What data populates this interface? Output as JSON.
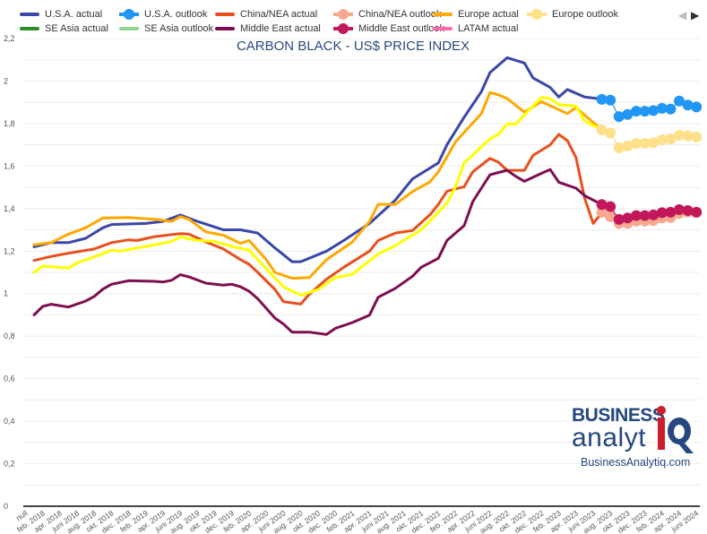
{
  "chart_data": {
    "type": "line",
    "title": "CARBON BLACK - US$ PRICE INDEX",
    "xlabel": "",
    "ylabel": "",
    "ylim": [
      0,
      2.2
    ],
    "yticks": [
      "0",
      "0,2",
      "0,4",
      "0,6",
      "0,8",
      "1",
      "1,2",
      "1,4",
      "1,6",
      "1,8",
      "2",
      "2,2"
    ],
    "xstart": "2017-12",
    "xend": "2024-06",
    "xtick_labels": [
      "null",
      "feb. 2018",
      "apr. 2018",
      "juni 2018",
      "aug. 2018",
      "okt. 2018",
      "dec. 2018",
      "feb. 2019",
      "apr. 2019",
      "juni 2019",
      "aug. 2019",
      "okt. 2019",
      "dec. 2019",
      "feb. 2020",
      "apr. 2020",
      "juni 2020",
      "aug. 2020",
      "okt. 2020",
      "dec. 2020",
      "feb. 2021",
      "apr. 2021",
      "juni 2021",
      "aug. 2021",
      "okt. 2021",
      "dec. 2021",
      "feb. 2022",
      "apr. 2022",
      "juni 2022",
      "aug. 2022",
      "okt. 2022",
      "dec. 2022",
      "feb. 2023",
      "apr. 2023",
      "juni 2023",
      "aug. 2023",
      "okt. 2023",
      "dec. 2023",
      "feb. 2024",
      "apr. 2024",
      "juni 2024"
    ],
    "grid": true,
    "legend_placement": "top",
    "series": [
      {
        "name": "U.S.A. actual",
        "color": "#3a47a8",
        "style": "line",
        "points": [
          [
            "2018-01",
            1.22
          ],
          [
            "2018-03",
            1.24
          ],
          [
            "2018-05",
            1.24
          ],
          [
            "2018-07",
            1.26
          ],
          [
            "2018-09",
            1.31
          ],
          [
            "2018-10",
            1.325
          ],
          [
            "2019-02",
            1.33
          ],
          [
            "2019-04",
            1.34
          ],
          [
            "2019-06",
            1.37
          ],
          [
            "2019-08",
            1.34
          ],
          [
            "2019-11",
            1.3
          ],
          [
            "2020-01",
            1.3
          ],
          [
            "2020-03",
            1.285
          ],
          [
            "2020-05",
            1.215
          ],
          [
            "2020-07",
            1.15
          ],
          [
            "2020-08",
            1.15
          ],
          [
            "2020-11",
            1.2
          ],
          [
            "2021-01",
            1.25
          ],
          [
            "2021-04",
            1.33
          ],
          [
            "2021-07",
            1.44
          ],
          [
            "2021-09",
            1.54
          ],
          [
            "2021-12",
            1.615
          ],
          [
            "2022-01",
            1.7
          ],
          [
            "2022-03",
            1.83
          ],
          [
            "2022-05",
            1.95
          ],
          [
            "2022-06",
            2.04
          ],
          [
            "2022-08",
            2.11
          ],
          [
            "2022-10",
            2.085
          ],
          [
            "2022-11",
            2.015
          ],
          [
            "2023-01",
            1.97
          ],
          [
            "2023-02",
            1.925
          ],
          [
            "2023-03",
            1.96
          ],
          [
            "2023-05",
            1.925
          ],
          [
            "2023-07",
            1.915
          ]
        ]
      },
      {
        "name": "U.S.A. outlook",
        "color": "#2196f3",
        "style": "markers",
        "points": [
          [
            "2023-07",
            1.914
          ],
          [
            "2023-08",
            1.91
          ],
          [
            "2023-09",
            1.833
          ],
          [
            "2023-10",
            1.843
          ],
          [
            "2023-11",
            1.858
          ],
          [
            "2023-12",
            1.858
          ],
          [
            "2024-01",
            1.861
          ],
          [
            "2024-02",
            1.872
          ],
          [
            "2024-03",
            1.868
          ],
          [
            "2024-04",
            1.906
          ],
          [
            "2024-05",
            1.887
          ],
          [
            "2024-06",
            1.878
          ]
        ]
      },
      {
        "name": "China/NEA actual",
        "color": "#e8501c",
        "style": "line",
        "points": [
          [
            "2018-01",
            1.156
          ],
          [
            "2018-03",
            1.175
          ],
          [
            "2018-05",
            1.19
          ],
          [
            "2018-08",
            1.21
          ],
          [
            "2018-10",
            1.24
          ],
          [
            "2018-12",
            1.253
          ],
          [
            "2019-01",
            1.25
          ],
          [
            "2019-03",
            1.268
          ],
          [
            "2019-06",
            1.282
          ],
          [
            "2019-07",
            1.28
          ],
          [
            "2019-09",
            1.243
          ],
          [
            "2019-11",
            1.21
          ],
          [
            "2020-01",
            1.16
          ],
          [
            "2020-02",
            1.138
          ],
          [
            "2020-03",
            1.1
          ],
          [
            "2020-05",
            1.02
          ],
          [
            "2020-06",
            0.962
          ],
          [
            "2020-08",
            0.951
          ],
          [
            "2020-09",
            0.997
          ],
          [
            "2020-11",
            1.068
          ],
          [
            "2021-01",
            1.124
          ],
          [
            "2021-04",
            1.2
          ],
          [
            "2021-05",
            1.25
          ],
          [
            "2021-07",
            1.285
          ],
          [
            "2021-09",
            1.297
          ],
          [
            "2021-11",
            1.37
          ],
          [
            "2021-12",
            1.42
          ],
          [
            "2022-01",
            1.482
          ],
          [
            "2022-03",
            1.503
          ],
          [
            "2022-04",
            1.573
          ],
          [
            "2022-06",
            1.636
          ],
          [
            "2022-07",
            1.618
          ],
          [
            "2022-08",
            1.58
          ],
          [
            "2022-10",
            1.58
          ],
          [
            "2022-11",
            1.65
          ],
          [
            "2023-01",
            1.7
          ],
          [
            "2023-02",
            1.749
          ],
          [
            "2023-03",
            1.72
          ],
          [
            "2023-04",
            1.64
          ],
          [
            "2023-05",
            1.45
          ],
          [
            "2023-06",
            1.33
          ],
          [
            "2023-07",
            1.38
          ]
        ]
      },
      {
        "name": "China/NEA outlook",
        "color": "#f7a98f",
        "style": "markers",
        "points": [
          [
            "2023-07",
            1.383
          ],
          [
            "2023-08",
            1.362
          ],
          [
            "2023-09",
            1.33
          ],
          [
            "2023-10",
            1.33
          ],
          [
            "2023-11",
            1.341
          ],
          [
            "2023-12",
            1.341
          ],
          [
            "2024-01",
            1.344
          ],
          [
            "2024-02",
            1.356
          ],
          [
            "2024-03",
            1.358
          ],
          [
            "2024-04",
            1.377
          ],
          [
            "2024-05",
            1.383
          ],
          [
            "2024-06",
            1.383
          ]
        ]
      },
      {
        "name": "Europe actual",
        "color": "#ffa800",
        "style": "line",
        "points": [
          [
            "2018-01",
            1.23
          ],
          [
            "2018-03",
            1.24
          ],
          [
            "2018-05",
            1.28
          ],
          [
            "2018-07",
            1.31
          ],
          [
            "2018-09",
            1.356
          ],
          [
            "2018-12",
            1.358
          ],
          [
            "2019-03",
            1.35
          ],
          [
            "2019-05",
            1.34
          ],
          [
            "2019-06",
            1.362
          ],
          [
            "2019-07",
            1.35
          ],
          [
            "2019-09",
            1.29
          ],
          [
            "2019-11",
            1.275
          ],
          [
            "2020-01",
            1.237
          ],
          [
            "2020-02",
            1.25
          ],
          [
            "2020-04",
            1.16
          ],
          [
            "2020-05",
            1.1
          ],
          [
            "2020-07",
            1.072
          ],
          [
            "2020-09",
            1.075
          ],
          [
            "2020-11",
            1.16
          ],
          [
            "2021-02",
            1.243
          ],
          [
            "2021-04",
            1.34
          ],
          [
            "2021-05",
            1.42
          ],
          [
            "2021-07",
            1.42
          ],
          [
            "2021-09",
            1.48
          ],
          [
            "2021-11",
            1.525
          ],
          [
            "2021-12",
            1.573
          ],
          [
            "2022-02",
            1.714
          ],
          [
            "2022-05",
            1.847
          ],
          [
            "2022-06",
            1.946
          ],
          [
            "2022-07",
            1.935
          ],
          [
            "2022-08",
            1.917
          ],
          [
            "2022-10",
            1.854
          ],
          [
            "2022-12",
            1.903
          ],
          [
            "2023-03",
            1.847
          ],
          [
            "2023-04",
            1.875
          ],
          [
            "2023-07",
            1.77
          ]
        ]
      },
      {
        "name": "Europe outlook",
        "color": "#ffe08a",
        "style": "markers",
        "points": [
          [
            "2023-07",
            1.77
          ],
          [
            "2023-08",
            1.756
          ],
          [
            "2023-09",
            1.686
          ],
          [
            "2023-10",
            1.695
          ],
          [
            "2023-11",
            1.707
          ],
          [
            "2023-12",
            1.707
          ],
          [
            "2024-01",
            1.71
          ],
          [
            "2024-02",
            1.724
          ],
          [
            "2024-03",
            1.728
          ],
          [
            "2024-04",
            1.745
          ],
          [
            "2024-05",
            1.742
          ],
          [
            "2024-06",
            1.737
          ]
        ]
      },
      {
        "name": "SE Asia actual",
        "color": "#2e8b2e",
        "style": "line",
        "points": []
      },
      {
        "name": "SE Asia outlook",
        "color": "#90d590",
        "style": "line",
        "points": []
      },
      {
        "name": "Middle East actual",
        "color": "#7e0f4f",
        "style": "line",
        "points": [
          [
            "2018-01",
            0.9
          ],
          [
            "2018-02",
            0.94
          ],
          [
            "2018-03",
            0.95
          ],
          [
            "2018-05",
            0.937
          ],
          [
            "2018-07",
            0.965
          ],
          [
            "2018-08",
            0.987
          ],
          [
            "2018-09",
            1.021
          ],
          [
            "2018-10",
            1.044
          ],
          [
            "2018-12",
            1.061
          ],
          [
            "2019-03",
            1.058
          ],
          [
            "2019-04",
            1.055
          ],
          [
            "2019-05",
            1.063
          ],
          [
            "2019-06",
            1.089
          ],
          [
            "2019-07",
            1.079
          ],
          [
            "2019-09",
            1.049
          ],
          [
            "2019-11",
            1.04
          ],
          [
            "2019-12",
            1.044
          ],
          [
            "2020-01",
            1.032
          ],
          [
            "2020-02",
            1.011
          ],
          [
            "2020-03",
            0.976
          ],
          [
            "2020-05",
            0.885
          ],
          [
            "2020-06",
            0.857
          ],
          [
            "2020-07",
            0.819
          ],
          [
            "2020-09",
            0.819
          ],
          [
            "2020-11",
            0.808
          ],
          [
            "2020-12",
            0.836
          ],
          [
            "2021-02",
            0.864
          ],
          [
            "2021-04",
            0.899
          ],
          [
            "2021-05",
            0.983
          ],
          [
            "2021-07",
            1.025
          ],
          [
            "2021-09",
            1.082
          ],
          [
            "2021-10",
            1.124
          ],
          [
            "2021-11",
            1.145
          ],
          [
            "2021-12",
            1.166
          ],
          [
            "2022-01",
            1.25
          ],
          [
            "2022-03",
            1.32
          ],
          [
            "2022-04",
            1.433
          ],
          [
            "2022-06",
            1.559
          ],
          [
            "2022-07",
            1.57
          ],
          [
            "2022-08",
            1.58
          ],
          [
            "2022-09",
            1.552
          ],
          [
            "2022-10",
            1.528
          ],
          [
            "2022-12",
            1.566
          ],
          [
            "2023-01",
            1.584
          ],
          [
            "2023-02",
            1.524
          ],
          [
            "2023-04",
            1.496
          ],
          [
            "2023-05",
            1.461
          ],
          [
            "2023-07",
            1.419
          ]
        ]
      },
      {
        "name": "Middle East outlook",
        "color": "#c2185b",
        "style": "markers",
        "points": [
          [
            "2023-07",
            1.419
          ],
          [
            "2023-08",
            1.409
          ],
          [
            "2023-09",
            1.349
          ],
          [
            "2023-10",
            1.356
          ],
          [
            "2023-11",
            1.367
          ],
          [
            "2023-12",
            1.367
          ],
          [
            "2024-01",
            1.37
          ],
          [
            "2024-02",
            1.381
          ],
          [
            "2024-03",
            1.383
          ],
          [
            "2024-04",
            1.395
          ],
          [
            "2024-05",
            1.391
          ],
          [
            "2024-06",
            1.383
          ]
        ]
      },
      {
        "name": "LATAM actual",
        "color": "#ff69b4",
        "style": "line",
        "points": []
      },
      {
        "color": "#ffff00",
        "style": "line",
        "points": [
          [
            "2018-01",
            1.1
          ],
          [
            "2018-02",
            1.13
          ],
          [
            "2018-05",
            1.12
          ],
          [
            "2018-06",
            1.145
          ],
          [
            "2018-08",
            1.173
          ],
          [
            "2018-10",
            1.204
          ],
          [
            "2018-11",
            1.2
          ],
          [
            "2019-01",
            1.215
          ],
          [
            "2019-02",
            1.222
          ],
          [
            "2019-05",
            1.246
          ],
          [
            "2019-06",
            1.267
          ],
          [
            "2019-08",
            1.25
          ],
          [
            "2019-10",
            1.246
          ],
          [
            "2019-12",
            1.222
          ],
          [
            "2020-02",
            1.205
          ],
          [
            "2020-04",
            1.117
          ],
          [
            "2020-06",
            1.032
          ],
          [
            "2020-08",
            0.993
          ],
          [
            "2020-10",
            1.019
          ],
          [
            "2020-12",
            1.075
          ],
          [
            "2021-02",
            1.091
          ],
          [
            "2021-05",
            1.187
          ],
          [
            "2021-07",
            1.226
          ],
          [
            "2021-10",
            1.3
          ],
          [
            "2021-11",
            1.341
          ],
          [
            "2022-01",
            1.426
          ],
          [
            "2022-02",
            1.503
          ],
          [
            "2022-03",
            1.615
          ],
          [
            "2022-06",
            1.728
          ],
          [
            "2022-07",
            1.75
          ],
          [
            "2022-08",
            1.798
          ],
          [
            "2022-09",
            1.798
          ],
          [
            "2022-10",
            1.84
          ],
          [
            "2022-12",
            1.924
          ],
          [
            "2023-01",
            1.917
          ],
          [
            "2023-02",
            1.889
          ],
          [
            "2023-04",
            1.882
          ],
          [
            "2023-05",
            1.812
          ],
          [
            "2023-07",
            1.77
          ]
        ]
      }
    ]
  },
  "legend": {
    "items": [
      "U.S.A. actual",
      "U.S.A. outlook",
      "China/NEA actual",
      "China/NEA outlook",
      "Europe actual",
      "Europe outlook",
      "SE Asia actual",
      "SE Asia outlook",
      "Middle East actual",
      "Middle East outlook",
      "LATAM actual"
    ],
    "prev_icon": "triangle-left-icon",
    "next_icon": "triangle-right-icon",
    "prev": "◀",
    "next": "▶"
  },
  "logo": {
    "line1": "BUSINESS",
    "line2": "analyt",
    "mark": "iQ",
    "url": "BusinessAnalytiq.com"
  }
}
